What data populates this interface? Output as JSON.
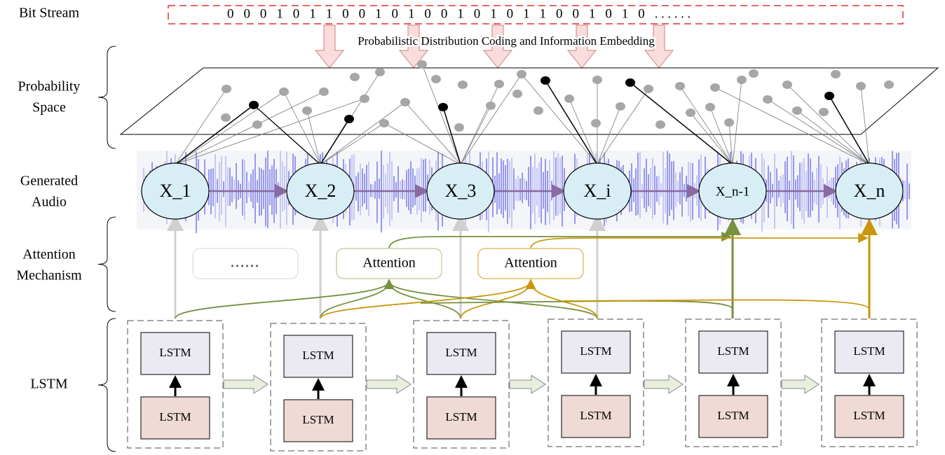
{
  "row_labels": [
    [
      "Bit Stream"
    ],
    [
      "Probability",
      "Space"
    ],
    [
      "Generated",
      "Audio"
    ],
    [
      "Attention",
      "Mechanism"
    ],
    [
      "LSTM"
    ]
  ],
  "bit_stream": "0 0 0 1 0 1 1 0 0 1 0 1 0 0 1 0 1 0 1 1 0 0 1 0 1 0 ......",
  "embedding_label": "Probabilistic Distribution Coding and Information Embedding",
  "nodes": [
    "X_1",
    "X_2",
    "X_3",
    "X_i",
    "X_n-1",
    "X_n"
  ],
  "attention_boxes": [
    "......",
    "Attention",
    "Attention"
  ],
  "lstm_groups": [
    [
      "LSTM",
      "LSTM"
    ],
    [
      "LSTM",
      "LSTM"
    ],
    [
      "LSTM",
      "LSTM"
    ],
    [
      "LSTM",
      "LSTM"
    ],
    [
      "LSTM",
      "LSTM"
    ],
    [
      "LSTM",
      "LSTM"
    ]
  ]
}
